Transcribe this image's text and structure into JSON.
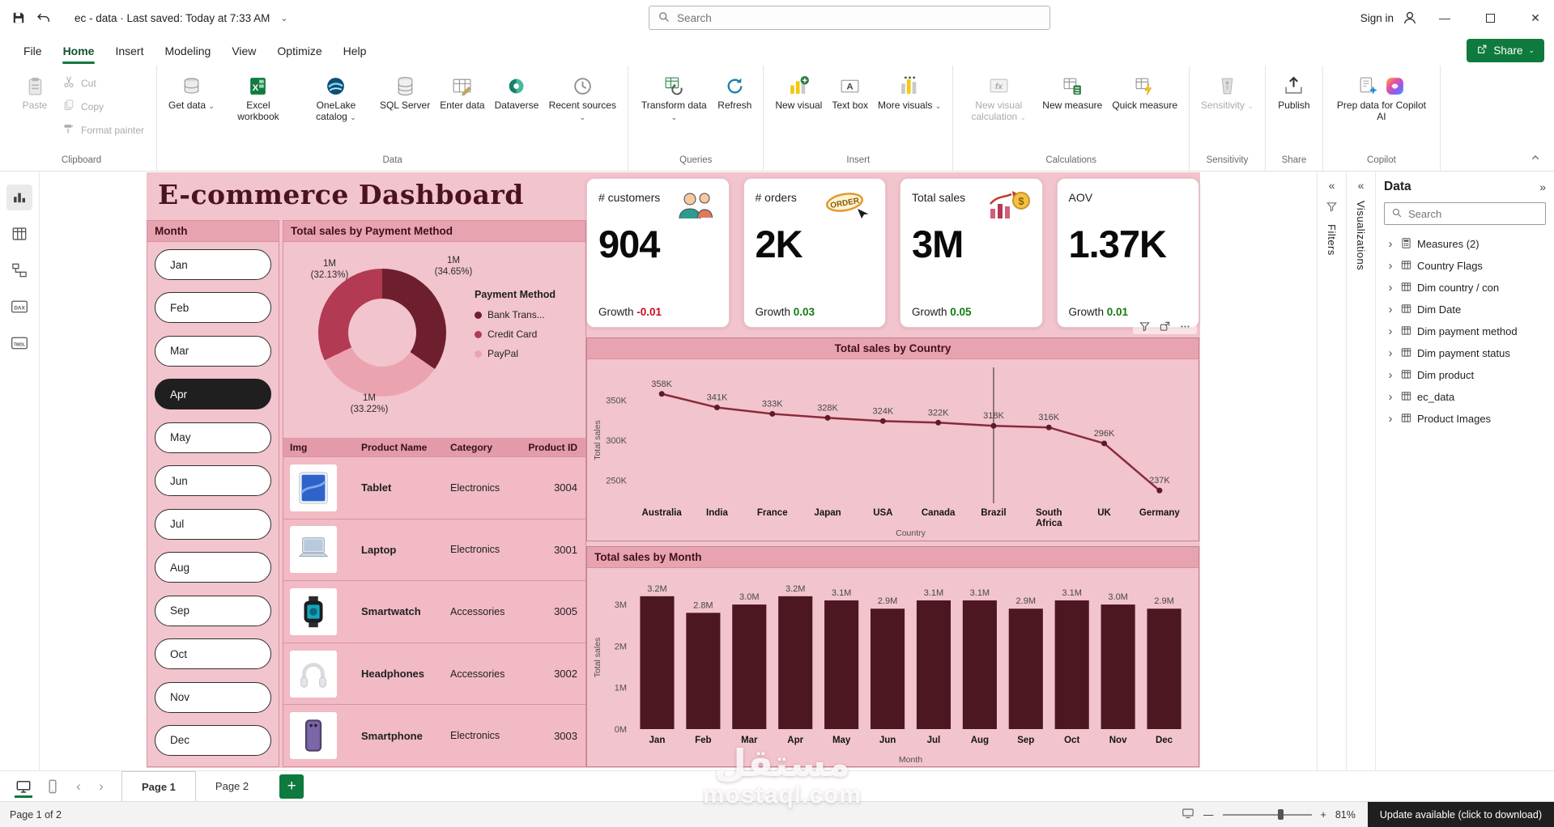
{
  "titlebar": {
    "doc_title": "ec - data  ·  Last saved: Today at 7:33 AM",
    "search_placeholder": "Search",
    "sign_in": "Sign in"
  },
  "menu": {
    "items": [
      "File",
      "Home",
      "Insert",
      "Modeling",
      "View",
      "Optimize",
      "Help"
    ],
    "active": "Home",
    "share_label": "Share"
  },
  "ribbon": {
    "groups": [
      {
        "name": "Clipboard",
        "buttons": [
          {
            "label": "Paste",
            "icon": "paste",
            "large": true,
            "disabled": true
          },
          {
            "label": "Cut",
            "icon": "cut",
            "small": true,
            "disabled": true
          },
          {
            "label": "Copy",
            "icon": "copy",
            "small": true,
            "disabled": true
          },
          {
            "label": "Format painter",
            "icon": "brush",
            "small": true,
            "disabled": true
          }
        ]
      },
      {
        "name": "Data",
        "buttons": [
          {
            "label": "Get data",
            "icon": "getdata",
            "large": true,
            "chevron": true
          },
          {
            "label": "Excel workbook",
            "icon": "excel",
            "large": true
          },
          {
            "label": "OneLake catalog",
            "icon": "onelake",
            "large": true,
            "chevron": true
          },
          {
            "label": "SQL Server",
            "icon": "sql",
            "large": true
          },
          {
            "label": "Enter data",
            "icon": "enterdata",
            "large": true
          },
          {
            "label": "Dataverse",
            "icon": "dataverse",
            "large": true
          },
          {
            "label": "Recent sources",
            "icon": "recent",
            "large": true,
            "chevron": true
          }
        ]
      },
      {
        "name": "Queries",
        "buttons": [
          {
            "label": "Transform data",
            "icon": "transform",
            "large": true,
            "chevron": true
          },
          {
            "label": "Refresh",
            "icon": "refresh",
            "large": true
          }
        ]
      },
      {
        "name": "Insert",
        "buttons": [
          {
            "label": "New visual",
            "icon": "newvisual",
            "large": true
          },
          {
            "label": "Text box",
            "icon": "textbox",
            "large": true
          },
          {
            "label": "More visuals",
            "icon": "morevisuals",
            "large": true,
            "chevron": true
          }
        ]
      },
      {
        "name": "Calculations",
        "buttons": [
          {
            "label": "New visual calculation",
            "icon": "fx",
            "large": true,
            "chevron": true,
            "disabled": true
          },
          {
            "label": "New measure",
            "icon": "newmeasure",
            "large": true
          },
          {
            "label": "Quick measure",
            "icon": "quickmeasure",
            "large": true
          }
        ]
      },
      {
        "name": "Sensitivity",
        "buttons": [
          {
            "label": "Sensitivity",
            "icon": "sensitivity",
            "large": true,
            "chevron": true,
            "disabled": true
          }
        ]
      },
      {
        "name": "Share",
        "buttons": [
          {
            "label": "Publish",
            "icon": "publish",
            "large": true
          }
        ]
      },
      {
        "name": "Copilot",
        "buttons": [
          {
            "label": "Prep data for Copilot AI",
            "icon": "copilotprep",
            "icon2": "copilotlogo",
            "large": true,
            "wide": true
          }
        ]
      }
    ]
  },
  "dashboard": {
    "title": "E-commerce Dashboard",
    "slicer": {
      "header": "Month",
      "items": [
        "Jan",
        "Feb",
        "Mar",
        "Apr",
        "May",
        "Jun",
        "Jul",
        "Aug",
        "Sep",
        "Oct",
        "Nov",
        "Dec"
      ],
      "selected": "Apr"
    },
    "payment": {
      "header": "Total sales by Payment Method",
      "labels": [
        {
          "value": "1M",
          "pct": "(32.13%)",
          "pos": "top-left"
        },
        {
          "value": "1M",
          "pct": "(34.65%)",
          "pos": "top-right"
        },
        {
          "value": "1M",
          "pct": "(33.22%)",
          "pos": "bottom"
        }
      ],
      "legend_title": "Payment Method",
      "legend": [
        {
          "label": "Bank Trans...",
          "color": "#6d1f2e"
        },
        {
          "label": "Credit Card",
          "color": "#b23a52"
        },
        {
          "label": "PayPal",
          "color": "#eca3b0"
        }
      ]
    },
    "table": {
      "columns": [
        "Img",
        "Product Name",
        "Category",
        "Product ID"
      ],
      "rows": [
        {
          "img": "tablet",
          "name": "Tablet",
          "category": "Electronics",
          "id": "3004"
        },
        {
          "img": "laptop",
          "name": "Laptop",
          "category": "Electronics",
          "id": "3001"
        },
        {
          "img": "smartwatch",
          "name": "Smartwatch",
          "category": "Accessories",
          "id": "3005"
        },
        {
          "img": "headphones",
          "name": "Headphones",
          "category": "Accessories",
          "id": "3002"
        },
        {
          "img": "smartphone",
          "name": "Smartphone",
          "category": "Electronics",
          "id": "3003"
        }
      ]
    },
    "kpis": [
      {
        "label": "# customers",
        "value": "904",
        "growth_label": "Growth",
        "growth": "-0.01",
        "growth_color": "#c50f1f",
        "icon": "people"
      },
      {
        "label": "# orders",
        "value": "2K",
        "growth_label": "Growth",
        "growth": "0.03",
        "growth_color": "#107c10",
        "icon": "order",
        "icon_text": "ORDER"
      },
      {
        "label": "Total sales",
        "value": "3M",
        "growth_label": "Growth",
        "growth": "0.05",
        "growth_color": "#107c10",
        "icon": "sales"
      },
      {
        "label": "AOV",
        "value": "1.37K",
        "growth_label": "Growth",
        "growth": "0.01",
        "growth_color": "#107c10",
        "icon": ""
      }
    ]
  },
  "chart_data": [
    {
      "type": "pie",
      "donut": true,
      "title": "Total sales by Payment Method",
      "categories": [
        "Bank Transfer",
        "Credit Card",
        "PayPal"
      ],
      "values": [
        34.65,
        32.13,
        33.22
      ],
      "value_labels": [
        "1M (34.65%)",
        "1M (32.13%)",
        "1M (33.22%)"
      ],
      "colors": [
        "#6d1f2e",
        "#b23a52",
        "#eca3b0"
      ],
      "legend_position": "right"
    },
    {
      "type": "line",
      "title": "Total sales by Country",
      "categories": [
        "Australia",
        "India",
        "France",
        "Japan",
        "USA",
        "Canada",
        "Brazil",
        "South Africa",
        "UK",
        "Germany"
      ],
      "values": [
        358000,
        341000,
        333000,
        328000,
        324000,
        322000,
        318000,
        316000,
        296000,
        237000
      ],
      "point_labels": [
        "358K",
        "341K",
        "333K",
        "328K",
        "324K",
        "322K",
        "318K",
        "316K",
        "296K",
        "237K"
      ],
      "xlabel": "Country",
      "ylabel": "Total sales",
      "yticks": [
        {
          "v": 250000,
          "label": "250K"
        },
        {
          "v": 300000,
          "label": "300K"
        },
        {
          "v": 350000,
          "label": "350K"
        }
      ],
      "ylim": [
        225000,
        375000
      ],
      "line_color": "#8a2a3b",
      "crosshair_category": "Brazil",
      "grid": false
    },
    {
      "type": "bar",
      "title": "Total sales by Month",
      "categories": [
        "Jan",
        "Feb",
        "Mar",
        "Apr",
        "May",
        "Jun",
        "Jul",
        "Aug",
        "Sep",
        "Oct",
        "Nov",
        "Dec"
      ],
      "values": [
        3200000,
        2800000,
        3000000,
        3200000,
        3100000,
        2900000,
        3100000,
        3100000,
        2900000,
        3100000,
        3000000,
        2900000
      ],
      "bar_labels": [
        "3.2M",
        "2.8M",
        "3.0M",
        "3.2M",
        "3.1M",
        "2.9M",
        "3.1M",
        "3.1M",
        "2.9M",
        "3.1M",
        "3.0M",
        "2.9M"
      ],
      "xlabel": "Month",
      "ylabel": "Total sales",
      "yticks": [
        {
          "v": 0,
          "label": "0M"
        },
        {
          "v": 1000000,
          "label": "1M"
        },
        {
          "v": 2000000,
          "label": "2M"
        },
        {
          "v": 3000000,
          "label": "3M"
        }
      ],
      "ylim": [
        0,
        3450000
      ],
      "bar_color": "#4d1722",
      "grid": false
    }
  ],
  "panes": {
    "filters_label": "Filters",
    "visualizations_label": "Visualizations",
    "data": {
      "title": "Data",
      "search_placeholder": "Search",
      "items": [
        "Measures (2)",
        "Country Flags",
        "Dim country / con",
        "Dim Date",
        "Dim payment method",
        "Dim payment status",
        "Dim product",
        "ec_data",
        "Product Images"
      ]
    }
  },
  "tabs": {
    "pages": [
      "Page 1",
      "Page 2"
    ],
    "active": "Page 1"
  },
  "statusbar": {
    "left": "Page 1 of 2",
    "zoom": "81%",
    "update": "Update available (click to download)"
  },
  "watermark": {
    "line1": "مستقل",
    "line2": "mostaql.com"
  }
}
